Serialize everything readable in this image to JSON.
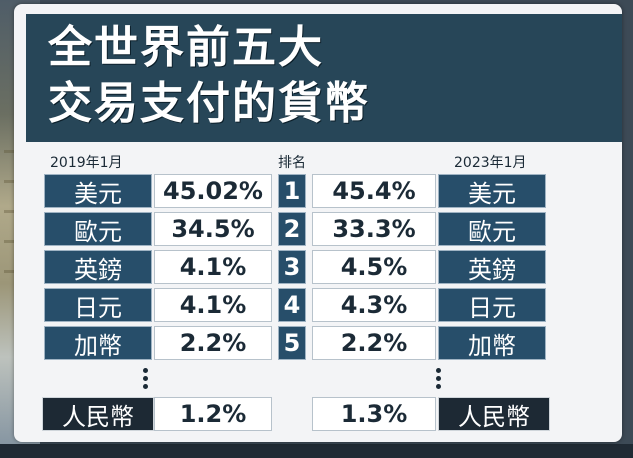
{
  "title": {
    "line1": "全世界前五大",
    "line2": "交易支付的貨幣"
  },
  "headers": {
    "left": "2019年1月",
    "middle": "排名",
    "right": "2023年1月"
  },
  "rows": [
    {
      "rank": "1",
      "currency_2019": "美元",
      "share_2019": "45.02%",
      "share_2023": "45.4%",
      "currency_2023": "美元"
    },
    {
      "rank": "2",
      "currency_2019": "歐元",
      "share_2019": "34.5%",
      "share_2023": "33.3%",
      "currency_2023": "歐元"
    },
    {
      "rank": "3",
      "currency_2019": "英鎊",
      "share_2019": "4.1%",
      "share_2023": "4.5%",
      "currency_2023": "英鎊"
    },
    {
      "rank": "4",
      "currency_2019": "日元",
      "share_2019": "4.1%",
      "share_2023": "4.3%",
      "currency_2023": "日元"
    },
    {
      "rank": "5",
      "currency_2019": "加幣",
      "share_2019": "2.2%",
      "share_2023": "2.2%",
      "currency_2023": "加幣"
    }
  ],
  "rmb_row": {
    "currency_2019": "人民幣",
    "share_2019": "1.2%",
    "share_2023": "1.3%",
    "currency_2023": "人民幣"
  },
  "ticker": {
    "text": ""
  },
  "colors": {
    "title_band": "#274658",
    "currency_cell": "#274e6a",
    "rmb_cell": "#1d2934",
    "card": "#f3f4f6"
  }
}
